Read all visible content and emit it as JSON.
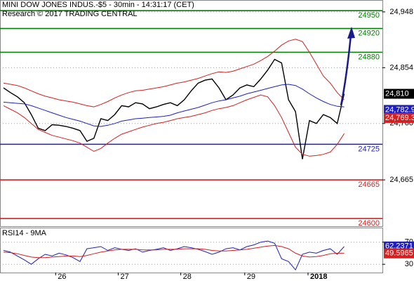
{
  "chart_data": [
    {
      "type": "line",
      "title": "MINI DOW JONES INDUS.-$5 - 30min - 14:31:17 (CET)",
      "subtitle": "Research © 2017 TRADING CENTRAL",
      "x": [
        0,
        1,
        2,
        3,
        4,
        5,
        6,
        7,
        8,
        9,
        10,
        11,
        12,
        13,
        14,
        15,
        16,
        17,
        18,
        19,
        20,
        21,
        22,
        23,
        24,
        25,
        26,
        27,
        28,
        29,
        30,
        31,
        32,
        33,
        34,
        35,
        36,
        37,
        38,
        39,
        40,
        41,
        42,
        43,
        44,
        45,
        46,
        47,
        48,
        49
      ],
      "xlim": [
        -0.5,
        54.5
      ],
      "ylim": [
        24587,
        24968
      ],
      "yticks": [
        {
          "value": 24948,
          "label": "24,948"
        },
        {
          "value": 24854,
          "label": "24,854"
        },
        {
          "value": 24760,
          "label": "24,760"
        },
        {
          "value": 24665,
          "label": "24,665"
        }
      ],
      "grid": true,
      "series": [
        {
          "color": "#000000",
          "values": [
            24820,
            24812,
            24805,
            24795,
            24775,
            24752,
            24748,
            24758,
            24757,
            24755,
            24752,
            24748,
            24730,
            24735,
            24768,
            24765,
            24775,
            24790,
            24788,
            24795,
            24793,
            24785,
            24788,
            24792,
            24795,
            24790,
            24800,
            24815,
            24828,
            24833,
            24835,
            24820,
            24800,
            24808,
            24820,
            24825,
            24822,
            24835,
            24850,
            24868,
            24862,
            24800,
            24780,
            24700,
            24765,
            24760,
            24775,
            24770,
            24760,
            24810
          ]
        },
        {
          "color": "#1f1fbf",
          "values": [
            24796,
            24795,
            24794,
            24793,
            24790,
            24786,
            24782,
            24778,
            24774,
            24770,
            24767,
            24764,
            24760,
            24756,
            24755,
            24757,
            24760,
            24764,
            24766,
            24768,
            24769,
            24770,
            24771,
            24772,
            24774,
            24778,
            24781,
            24784,
            24787,
            24791,
            24795,
            24798,
            24800,
            24803,
            24806,
            24810,
            24813,
            24816,
            24819,
            24822,
            24825,
            24826,
            24824,
            24818,
            24810,
            24803,
            24797,
            24792,
            24789,
            24788
          ]
        },
        {
          "color": "#d42020",
          "values": [
            24828,
            24826,
            24824,
            24820,
            24815,
            24810,
            24806,
            24803,
            24800,
            24798,
            24796,
            24793,
            24790,
            24788,
            24792,
            24797,
            24803,
            24808,
            24812,
            24815,
            24816,
            24818,
            24820,
            24822,
            24825,
            24828,
            24830,
            24833,
            24836,
            24840,
            24844,
            24847,
            24846,
            24848,
            24852,
            24856,
            24860,
            24866,
            24873,
            24882,
            24892,
            24899,
            24902,
            24898,
            24880,
            24860,
            24840,
            24828,
            24812,
            24800
          ]
        },
        {
          "color": "#d42020",
          "values": [
            24790,
            24784,
            24778,
            24770,
            24760,
            24750,
            24745,
            24740,
            24737,
            24734,
            24731,
            24727,
            24720,
            24713,
            24718,
            24727,
            24735,
            24742,
            24746,
            24750,
            24754,
            24757,
            24760,
            24762,
            24765,
            24768,
            24770,
            24772,
            24775,
            24778,
            24782,
            24785,
            24787,
            24790,
            24795,
            24800,
            24804,
            24808,
            24805,
            24790,
            24770,
            24745,
            24720,
            24708,
            24705,
            24706,
            24708,
            24712,
            24725,
            24743
          ]
        }
      ],
      "levels": [
        {
          "value": 24950,
          "color": "#008000"
        },
        {
          "value": 24920,
          "color": "#008000"
        },
        {
          "value": 24880,
          "color": "#008000"
        },
        {
          "value": 24725,
          "color": "#1f1fbf"
        },
        {
          "value": 24665,
          "color": "#d42020"
        },
        {
          "value": 24600,
          "color": "#d42020"
        }
      ],
      "value_tags": [
        {
          "value": 24810,
          "label": "24,810",
          "color": "#000000"
        },
        {
          "value": 24782.9,
          "label": "24,782.9",
          "color": "#1f1fbf"
        },
        {
          "value": 24769.3,
          "label": "24,769.3",
          "color": "#d42020"
        }
      ]
    },
    {
      "type": "line",
      "title": "RSI14 - 9MA",
      "x": [
        0,
        1,
        2,
        3,
        4,
        5,
        6,
        7,
        8,
        9,
        10,
        11,
        12,
        13,
        14,
        15,
        16,
        17,
        18,
        19,
        20,
        21,
        22,
        23,
        24,
        25,
        26,
        27,
        28,
        29,
        30,
        31,
        32,
        33,
        34,
        35,
        36,
        37,
        38,
        39,
        40,
        41,
        42,
        43,
        44,
        45,
        46,
        47,
        48,
        49
      ],
      "xlim": [
        -0.5,
        54.5
      ],
      "xticks": [
        {
          "value": 7.5,
          "label": "26"
        },
        {
          "value": 16.5,
          "label": "27"
        },
        {
          "value": 25.5,
          "label": "28"
        },
        {
          "value": 34.7,
          "label": "29"
        },
        {
          "value": 43.8,
          "label": "2018"
        }
      ],
      "ylim": [
        15,
        95
      ],
      "yticks": [
        70,
        30
      ],
      "series": [
        {
          "color": "#1f1fbf",
          "values": [
            55,
            52,
            45,
            38,
            30,
            40,
            48,
            45,
            50,
            47,
            42,
            35,
            58,
            60,
            62,
            55,
            60,
            57,
            55,
            58,
            52,
            55,
            57,
            60,
            55,
            58,
            62,
            60,
            57,
            53,
            48,
            52,
            58,
            60,
            56,
            62,
            65,
            70,
            72,
            68,
            40,
            35,
            20,
            48,
            52,
            50,
            55,
            58,
            48,
            62
          ]
        },
        {
          "color": "#d42020",
          "values": [
            52,
            51,
            49,
            46,
            43,
            42,
            42,
            43,
            44,
            45,
            45,
            44,
            46,
            49,
            52,
            54,
            56,
            57,
            57,
            57,
            56,
            56,
            56,
            57,
            57,
            57,
            58,
            58,
            58,
            57,
            55,
            54,
            54,
            55,
            56,
            57,
            59,
            61,
            63,
            64,
            62,
            58,
            50,
            45,
            43,
            44,
            46,
            49,
            50,
            50
          ]
        }
      ],
      "value_tags": [
        {
          "value": 62.2371,
          "label": "62.2371",
          "color": "#1f1fbf"
        },
        {
          "value": 49.5965,
          "label": "49.5965",
          "color": "#d42020"
        }
      ]
    }
  ]
}
